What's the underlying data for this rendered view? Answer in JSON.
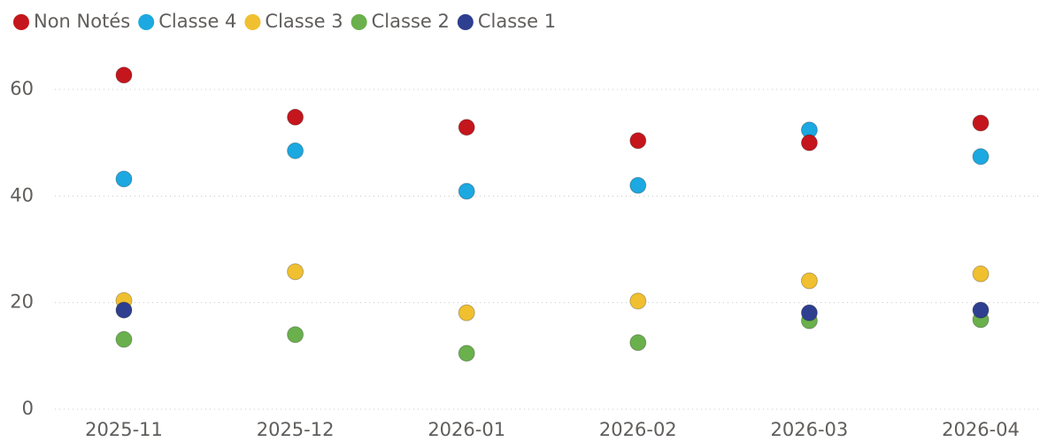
{
  "chart_data": {
    "type": "scatter",
    "categories": [
      "2025-11",
      "2025-12",
      "2026-01",
      "2026-02",
      "2026-03",
      "2026-04"
    ],
    "series": [
      {
        "name": "Non Notés",
        "color": "#c4161c",
        "values": [
          62.7,
          54.8,
          52.9,
          50.4,
          50.0,
          53.7
        ]
      },
      {
        "name": "Classe 4",
        "color": "#1ca8e0",
        "values": [
          43.2,
          48.5,
          40.9,
          42.0,
          52.4,
          47.4
        ]
      },
      {
        "name": "Classe 3",
        "color": "#f0c030",
        "values": [
          20.4,
          25.8,
          18.1,
          20.3,
          24.1,
          25.4
        ]
      },
      {
        "name": "Classe 2",
        "color": "#6ab04c",
        "values": [
          13.1,
          14.0,
          10.5,
          12.5,
          16.6,
          16.8
        ]
      },
      {
        "name": "Classe 1",
        "color": "#2e3f8f",
        "values": [
          18.6,
          null,
          null,
          null,
          18.1,
          18.6
        ]
      }
    ],
    "ylim": [
      0,
      60
    ],
    "yticks": [
      0,
      20,
      40,
      60
    ],
    "grid": true,
    "legend": "top-left"
  }
}
